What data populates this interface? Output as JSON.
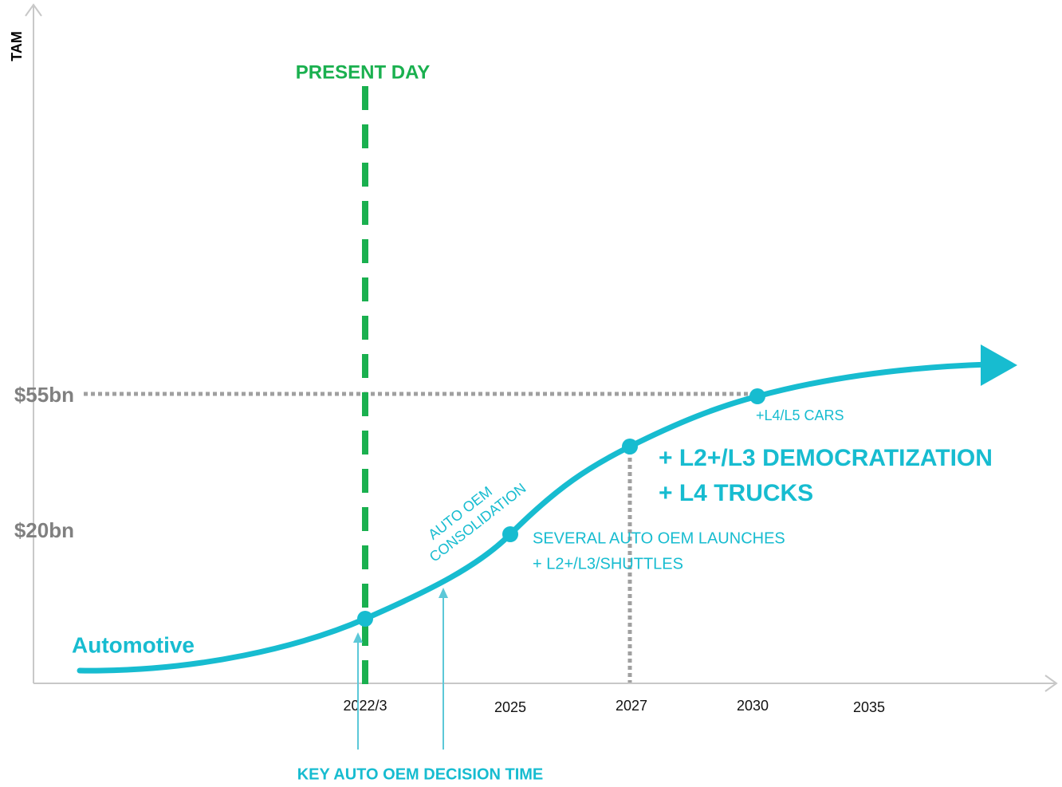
{
  "axis": {
    "y_label": "TAM",
    "y_levels": [
      "$55bn",
      "$20bn"
    ],
    "x_labels": [
      "2022/3",
      "2025",
      "2027",
      "2030",
      "2035"
    ]
  },
  "present_day": "PRESENT DAY",
  "series_label": "Automotive",
  "annotations": {
    "consolidation": [
      "AUTO OEM",
      "CONSOLIDATION"
    ],
    "launches": [
      "SEVERAL AUTO OEM LAUNCHES",
      "+ L2+/L3/SHUTTLES"
    ],
    "democratization": [
      "+ L2+/L3 DEMOCRATIZATION",
      "+ L4 TRUCKS"
    ],
    "l4l5": "+L4/L5 CARS",
    "decision_time": "KEY AUTO OEM DECISION TIME"
  }
}
